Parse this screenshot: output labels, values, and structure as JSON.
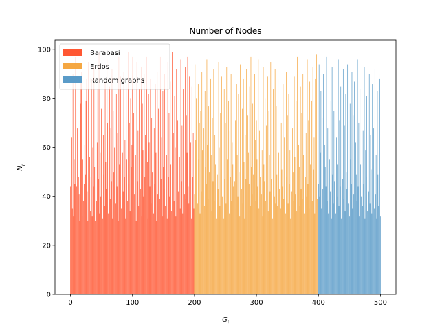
{
  "chart_data": {
    "type": "bar",
    "title": "Number of Nodes",
    "xlabel": "G_i",
    "ylabel": "N_i",
    "xlim": [
      -25,
      525
    ],
    "ylim": [
      0,
      104
    ],
    "xticks": [
      0,
      100,
      200,
      300,
      400,
      500
    ],
    "yticks": [
      0,
      20,
      40,
      60,
      80,
      100
    ],
    "grid": false,
    "legend_position": "top-left",
    "series": [
      {
        "name": "Barabasi",
        "color": "#FF5733",
        "x_start": 0,
        "values": [
          44,
          66,
          64,
          35,
          90,
          32,
          55,
          45,
          97,
          76,
          44,
          68,
          30,
          48,
          41,
          30,
          78,
          88,
          91,
          32,
          55,
          38,
          45,
          61,
          49,
          79,
          88,
          42,
          30,
          95,
          73,
          56,
          34,
          48,
          88,
          32,
          60,
          44,
          93,
          52,
          30,
          71,
          38,
          62,
          84,
          47,
          99,
          33,
          58,
          40,
          76,
          90,
          31,
          65,
          49,
          36,
          87,
          54,
          43,
          96,
          70,
          33,
          57,
          85,
          39,
          68,
          46,
          92,
          31,
          75,
          50,
          60,
          94,
          37,
          82,
          44,
          66,
          30,
          97,
          53,
          40,
          89,
          35,
          72,
          58,
          42,
          91,
          48,
          63,
          31,
          86,
          55,
          38,
          99,
          45,
          70,
          34,
          80,
          52,
          61,
          97,
          33,
          74,
          41,
          88,
          57,
          30,
          95,
          46,
          67,
          36,
          84,
          51,
          43,
          93,
          32,
          78,
          59,
          40,
          90,
          48,
          65,
          35,
          97,
          54,
          31,
          82,
          62,
          44,
          88,
          37,
          72,
          50,
          94,
          33,
          68,
          45,
          86,
          58,
          30,
          91,
          41,
          76,
          55,
          39,
          97,
          47,
          64,
          32,
          83,
          52,
          43,
          90,
          36,
          70,
          57,
          31,
          95,
          48,
          74,
          40,
          87,
          53,
          34,
          99,
          45,
          66,
          38,
          81,
          60,
          32,
          92,
          50,
          71,
          42,
          88,
          56,
          35,
          96,
          46,
          69,
          33,
          84,
          54,
          41,
          93,
          39,
          73,
          58,
          97,
          44,
          37,
          89,
          52,
          62,
          31,
          85,
          48,
          66,
          35
        ]
      },
      {
        "name": "Erdos",
        "color": "#F5A742",
        "x_start": 200,
        "values": [
          41,
          94,
          63,
          80,
          47,
          37,
          86,
          55,
          70,
          33,
          75,
          42,
          91,
          59,
          48,
          68,
          36,
          83,
          52,
          45,
          96,
          61,
          39,
          77,
          50,
          44,
          88,
          57,
          34,
          72,
          46,
          92,
          38,
          65,
          53,
          31,
          81,
          49,
          43,
          95,
          60,
          36,
          74,
          51,
          89,
          40,
          58,
          31,
          84,
          47,
          70,
          37,
          93,
          55,
          42,
          79,
          33,
          67,
          48,
          90,
          38,
          62,
          53,
          44,
          97,
          46,
          71,
          35,
          86,
          57,
          40,
          82,
          50,
          32,
          94,
          61,
          43,
          76,
          37,
          88,
          54,
          31,
          65,
          47,
          92,
          39,
          73,
          58,
          45,
          85,
          36,
          97,
          52,
          41,
          78,
          49,
          33,
          90,
          63,
          38,
          71,
          55,
          44,
          96,
          35,
          67,
          48,
          87,
          41,
          59,
          32,
          93,
          53,
          46,
          80,
          38,
          69,
          50,
          89,
          34,
          75,
          57,
          42,
          95,
          47,
          63,
          31,
          84,
          54,
          40,
          92,
          37,
          77,
          49,
          36,
          88,
          58,
          43,
          97,
          35,
          70,
          51,
          44,
          86,
          39,
          64,
          55,
          33,
          91,
          48,
          73,
          37,
          82,
          45,
          59,
          31,
          94,
          42,
          68,
          50,
          38,
          89,
          56,
          41,
          79,
          34,
          97,
          47,
          61,
          52,
          36,
          85,
          43,
          74,
          39,
          90,
          57,
          33,
          83,
          48,
          66,
          40,
          96,
          45,
          71,
          35,
          87,
          53,
          42,
          79,
          38,
          93,
          51,
          64,
          33,
          88,
          47,
          98,
          39,
          72
        ]
      },
      {
        "name": "Random graphs",
        "color": "#5A9BC8",
        "x_start": 400,
        "values": [
          45,
          94,
          40,
          58,
          83,
          35,
          72,
          43,
          90,
          36,
          61,
          52,
          44,
          97,
          38,
          68,
          33,
          86,
          55,
          42,
          79,
          31,
          93,
          49,
          37,
          75,
          46,
          88,
          33,
          64,
          53,
          40,
          96,
          36,
          71,
          44,
          85,
          31,
          58,
          47,
          92,
          39,
          69,
          34,
          82,
          50,
          43,
          94,
          37,
          66,
          32,
          78,
          55,
          45,
          91,
          35,
          73,
          41,
          87,
          33,
          62,
          49,
          38,
          96,
          44,
          70,
          32,
          84,
          53,
          40,
          89,
          36,
          67,
          45,
          93,
          31,
          59,
          48,
          81,
          34,
          74,
          42,
          90,
          37,
          65,
          51,
          33,
          86,
          46,
          68,
          35,
          92,
          41,
          57,
          31,
          83,
          49,
          36,
          90,
          88,
          32
        ]
      }
    ]
  }
}
